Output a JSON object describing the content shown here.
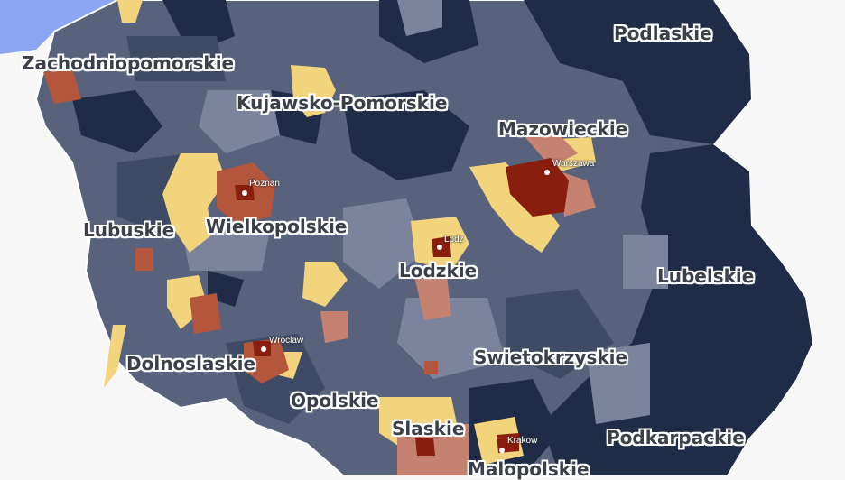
{
  "colors": {
    "background": "#f7f7f7",
    "sea": "#8aa6f5",
    "navy": "#1f2b47",
    "slate_dark": "#3f4a64",
    "slate": "#58627c",
    "slate_light": "#7b849c",
    "yellow": "#f2d47c",
    "salmon": "#c68270",
    "rust": "#b4563c",
    "dark_red": "#8a1e0e"
  },
  "regions": [
    {
      "name": "Zachodniopomorskie"
    },
    {
      "name": "Kujawsko-Pomorskie"
    },
    {
      "name": "Podlaskie"
    },
    {
      "name": "Mazowieckie"
    },
    {
      "name": "Lubuskie"
    },
    {
      "name": "Wielkopolskie"
    },
    {
      "name": "Lodzkie"
    },
    {
      "name": "Lubelskie"
    },
    {
      "name": "Dolnoslaskie"
    },
    {
      "name": "Swietokrzyskie"
    },
    {
      "name": "Opolskie"
    },
    {
      "name": "Slaskie"
    },
    {
      "name": "Podkarpackie"
    },
    {
      "name": "Malopolskie"
    }
  ],
  "cities": [
    {
      "name": "Warszawa"
    },
    {
      "name": "Poznan"
    },
    {
      "name": "Lodz"
    },
    {
      "name": "Wroclaw"
    },
    {
      "name": "Krakow"
    }
  ]
}
